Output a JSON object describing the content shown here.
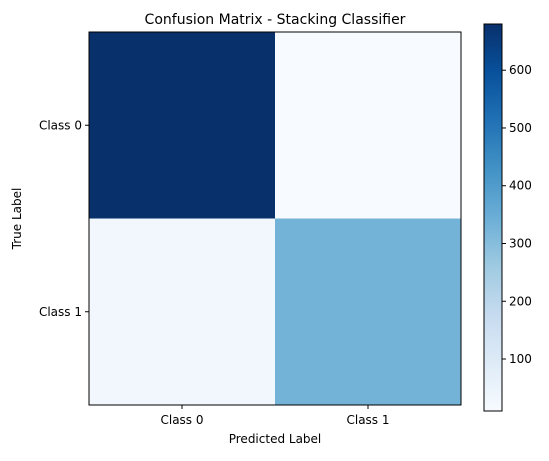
{
  "chart_data": {
    "type": "heatmap",
    "title": "Confusion Matrix - Stacking Classifier",
    "xlabel": "Predicted Label",
    "ylabel": "True Label",
    "x_categories": [
      "Class 0",
      "Class 1"
    ],
    "y_categories": [
      "Class 0",
      "Class 1"
    ],
    "values": [
      [
        680,
        10
      ],
      [
        30,
        330
      ]
    ],
    "colormap": "Blues",
    "colorbar": {
      "range": [
        10,
        680
      ],
      "ticks": [
        {
          "value": 100,
          "label": "100"
        },
        {
          "value": 200,
          "label": "200"
        },
        {
          "value": 300,
          "label": "300"
        },
        {
          "value": 400,
          "label": "400"
        },
        {
          "value": 500,
          "label": "500"
        },
        {
          "value": 600,
          "label": "600"
        }
      ]
    },
    "grid": false
  }
}
